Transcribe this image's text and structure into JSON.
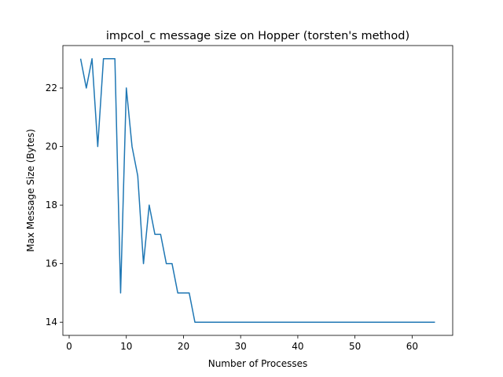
{
  "chart_data": {
    "type": "line",
    "title": "impcol_c message size on Hopper (torsten's method)",
    "xlabel": "Number of Processes",
    "ylabel": "Max Message Size (Bytes)",
    "xlim": [
      -1.1,
      67.1
    ],
    "ylim": [
      13.55,
      23.45
    ],
    "xticks": [
      0,
      10,
      20,
      30,
      40,
      50,
      60
    ],
    "yticks": [
      14,
      16,
      18,
      20,
      22
    ],
    "grid": false,
    "series": [
      {
        "color": "#1f77b4",
        "x": [
          2,
          3,
          4,
          5,
          6,
          7,
          8,
          9,
          10,
          11,
          12,
          13,
          14,
          15,
          16,
          17,
          18,
          19,
          20,
          21,
          22,
          23,
          24,
          25,
          26,
          27,
          28,
          29,
          30,
          31,
          32,
          33,
          34,
          35,
          36,
          37,
          38,
          39,
          40,
          41,
          42,
          43,
          44,
          45,
          46,
          47,
          48,
          49,
          50,
          51,
          52,
          53,
          54,
          55,
          56,
          57,
          58,
          59,
          60,
          61,
          62,
          63,
          64
        ],
        "y": [
          23,
          22,
          23,
          20,
          23,
          23,
          23,
          15,
          22,
          20,
          19,
          16,
          18,
          17,
          17,
          16,
          16,
          15,
          15,
          15,
          14,
          14,
          14,
          14,
          14,
          14,
          14,
          14,
          14,
          14,
          14,
          14,
          14,
          14,
          14,
          14,
          14,
          14,
          14,
          14,
          14,
          14,
          14,
          14,
          14,
          14,
          14,
          14,
          14,
          14,
          14,
          14,
          14,
          14,
          14,
          14,
          14,
          14,
          14,
          14,
          14,
          14,
          14
        ]
      }
    ]
  }
}
